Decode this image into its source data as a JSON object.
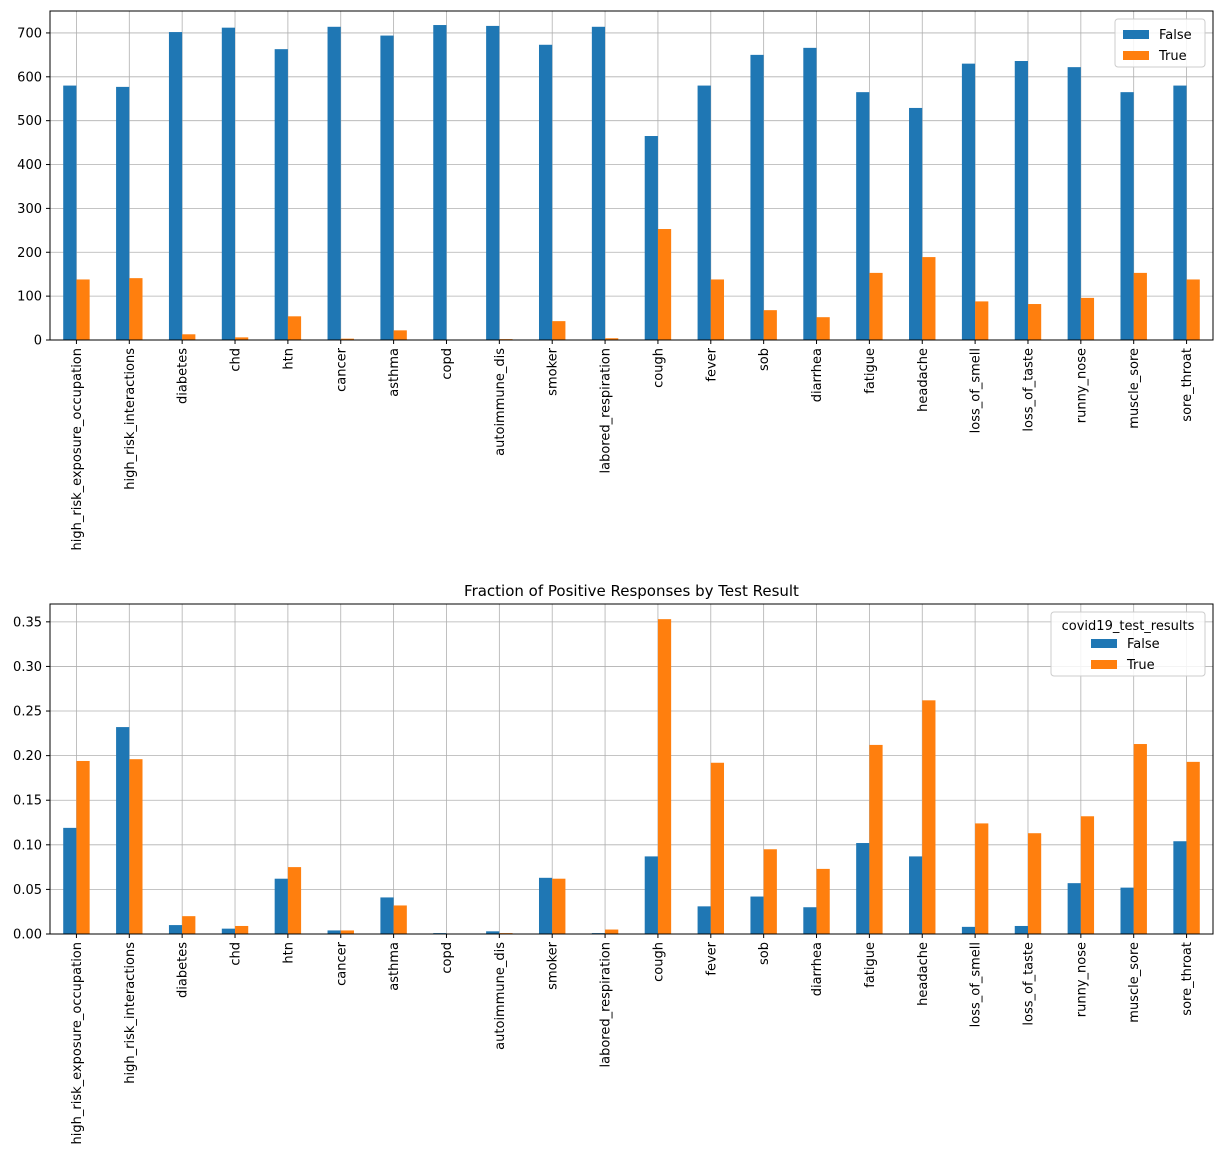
{
  "chart_data": [
    {
      "type": "bar",
      "categories": [
        "high_risk_exposure_occupation",
        "high_risk_interactions",
        "diabetes",
        "chd",
        "htn",
        "cancer",
        "asthma",
        "copd",
        "autoimmune_dis",
        "smoker",
        "labored_respiration",
        "cough",
        "fever",
        "sob",
        "diarrhea",
        "fatigue",
        "headache",
        "loss_of_smell",
        "loss_of_taste",
        "runny_nose",
        "muscle_sore",
        "sore_throat"
      ],
      "series": [
        {
          "name": "False",
          "color": "#1f77b4",
          "values": [
            580,
            577,
            702,
            712,
            663,
            714,
            694,
            718,
            716,
            673,
            714,
            465,
            580,
            650,
            666,
            565,
            529,
            630,
            636,
            622,
            565,
            580
          ]
        },
        {
          "name": "True",
          "color": "#ff7f0e",
          "values": [
            138,
            141,
            13,
            6,
            54,
            3,
            22,
            0,
            2,
            43,
            4,
            253,
            138,
            68,
            52,
            153,
            189,
            88,
            82,
            96,
            153,
            138
          ]
        }
      ],
      "ylim": [
        0,
        750
      ],
      "yticks": [
        0,
        100,
        200,
        300,
        400,
        500,
        600,
        700
      ],
      "grid": true,
      "legend": "upper right"
    },
    {
      "type": "bar",
      "title": "Fraction of Positive Responses by Test Result",
      "legend_title": "covid19_test_results",
      "categories": [
        "high_risk_exposure_occupation",
        "high_risk_interactions",
        "diabetes",
        "chd",
        "htn",
        "cancer",
        "asthma",
        "copd",
        "autoimmune_dis",
        "smoker",
        "labored_respiration",
        "cough",
        "fever",
        "sob",
        "diarrhea",
        "fatigue",
        "headache",
        "loss_of_smell",
        "loss_of_taste",
        "runny_nose",
        "muscle_sore",
        "sore_throat"
      ],
      "series": [
        {
          "name": "False",
          "color": "#1f77b4",
          "values": [
            0.119,
            0.232,
            0.01,
            0.006,
            0.062,
            0.004,
            0.041,
            0.001,
            0.003,
            0.063,
            0.001,
            0.087,
            0.031,
            0.042,
            0.03,
            0.102,
            0.087,
            0.008,
            0.009,
            0.057,
            0.052,
            0.104
          ]
        },
        {
          "name": "True",
          "color": "#ff7f0e",
          "values": [
            0.194,
            0.196,
            0.02,
            0.009,
            0.075,
            0.004,
            0.032,
            0.0,
            0.001,
            0.062,
            0.005,
            0.353,
            0.192,
            0.095,
            0.073,
            0.212,
            0.262,
            0.124,
            0.113,
            0.132,
            0.213,
            0.193
          ]
        }
      ],
      "ylim": [
        0,
        0.37
      ],
      "yticks": [
        {
          "value": 0,
          "label": "0.00"
        },
        {
          "value": 0.05,
          "label": "0.05"
        },
        {
          "value": 0.1,
          "label": "0.10"
        },
        {
          "value": 0.15,
          "label": "0.15"
        },
        {
          "value": 0.2,
          "label": "0.20"
        },
        {
          "value": 0.25,
          "label": "0.25"
        },
        {
          "value": 0.3,
          "label": "0.30"
        },
        {
          "value": 0.35,
          "label": "0.35"
        }
      ],
      "grid": true,
      "legend": "upper right"
    }
  ]
}
